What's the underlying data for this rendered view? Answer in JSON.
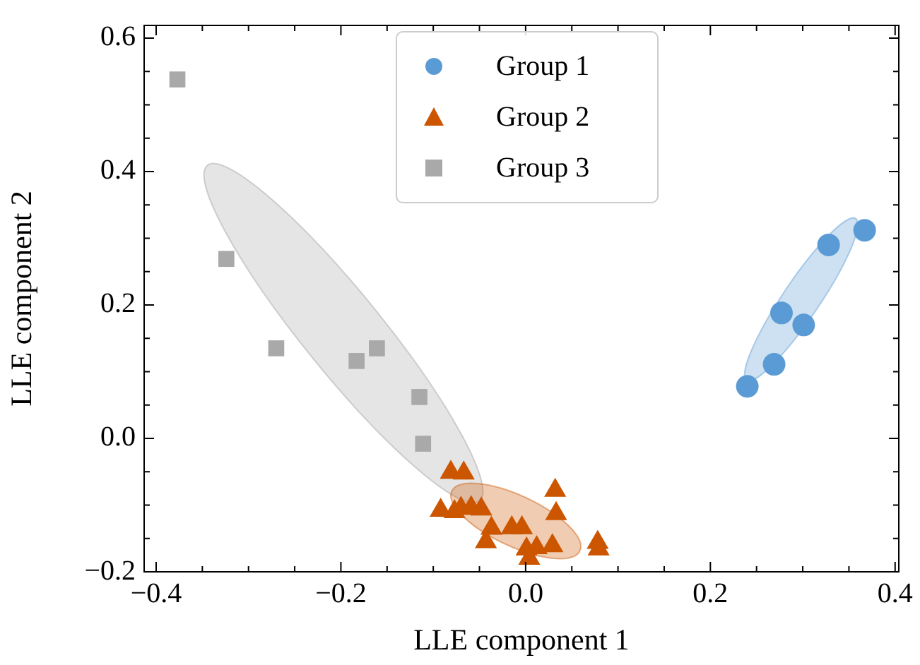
{
  "chart_data": {
    "type": "scatter",
    "xlabel": "LLE component 1",
    "ylabel": "LLE component 2",
    "xlim": [
      -0.413,
      0.404
    ],
    "ylim": [
      -0.2,
      0.619
    ],
    "xticks": [
      {
        "value": -0.4,
        "label": "−0.4"
      },
      {
        "value": -0.2,
        "label": "−0.2"
      },
      {
        "value": 0,
        "label": "0.0"
      },
      0.2,
      0.4
    ],
    "yticks": [
      {
        "value": -0.2,
        "label": "−0.2"
      },
      {
        "value": 0,
        "label": "0.0"
      },
      0.2,
      0.4,
      0.6
    ],
    "grid": false,
    "legend": "top",
    "series": [
      {
        "name": "Group 1",
        "color": "#5b9bd5",
        "marker": "circle",
        "x": [
          0.24,
          0.269,
          0.277,
          0.301,
          0.328,
          0.367
        ],
        "values": [
          0.078,
          0.111,
          0.188,
          0.17,
          0.29,
          0.312
        ]
      },
      {
        "name": "Group 2",
        "color": "#cc5500",
        "marker": "triangle",
        "x": [
          -0.081,
          -0.067,
          -0.092,
          -0.077,
          -0.07,
          -0.059,
          -0.048,
          -0.037,
          -0.043,
          -0.015,
          -0.004,
          0.032,
          0.033,
          0.001,
          0.012,
          0.004,
          0.029,
          0.078,
          0.079
        ],
        "values": [
          -0.051,
          -0.052,
          -0.108,
          -0.11,
          -0.105,
          -0.104,
          -0.106,
          -0.135,
          -0.155,
          -0.134,
          -0.134,
          -0.078,
          -0.113,
          -0.166,
          -0.164,
          -0.18,
          -0.161,
          -0.156,
          -0.166
        ]
      },
      {
        "name": "Group 3",
        "color": "#a9a9a9",
        "marker": "square",
        "x": [
          -0.377,
          -0.324,
          -0.27,
          -0.183,
          -0.161,
          -0.115,
          -0.111
        ],
        "values": [
          0.538,
          0.269,
          0.135,
          0.116,
          0.135,
          0.062,
          -0.008
        ]
      }
    ]
  }
}
